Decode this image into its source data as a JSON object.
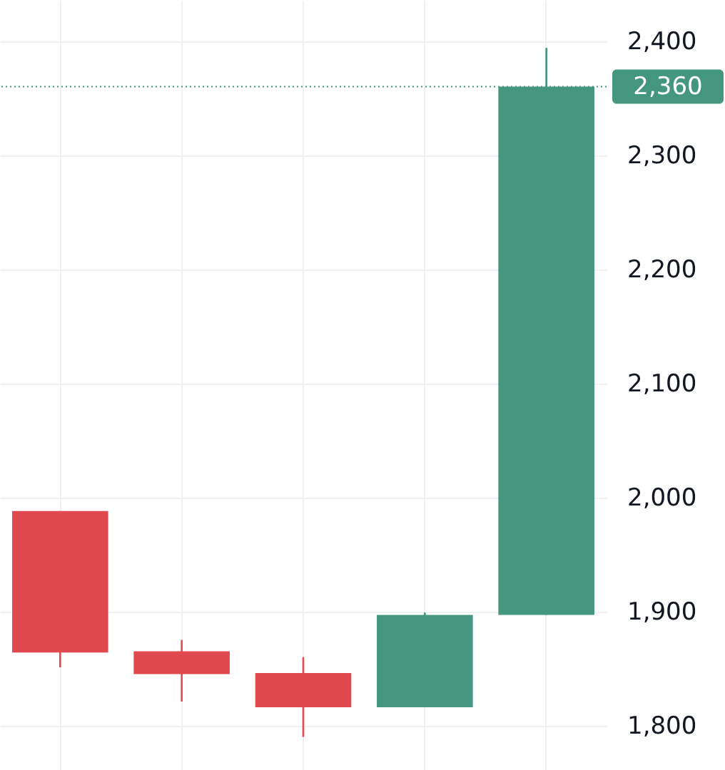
{
  "chart_data": {
    "type": "candlestick",
    "categories": [
      null,
      null,
      null,
      null,
      null
    ],
    "ohlc": [
      [
        1988,
        1988,
        1851,
        1864
      ],
      [
        1865,
        1875,
        1821,
        1845
      ],
      [
        1846,
        1860,
        1790,
        1816
      ],
      [
        1816,
        1899,
        1816,
        1897
      ],
      [
        1897,
        2394,
        1897,
        2360
      ]
    ],
    "colors": [
      "#e0494e",
      "#e0494e",
      "#e0494e",
      "#44967f",
      "#44967f"
    ],
    "ylim": [
      1761,
      2436
    ],
    "yticks": [
      {
        "value": 1800,
        "label": "1,800"
      },
      {
        "value": 1900,
        "label": "1,900"
      },
      {
        "value": 2000,
        "label": "2,000"
      },
      {
        "value": 2100,
        "label": "2,100"
      },
      {
        "value": 2200,
        "label": "2,200"
      },
      {
        "value": 2300,
        "label": "2,300"
      },
      {
        "value": 2400,
        "label": "2,400"
      }
    ],
    "grid": true,
    "tick_labels": "y",
    "ref_lines": [
      {
        "axis": "y",
        "value": 2360,
        "label": "2,360",
        "color": "#44967f",
        "line_style": "dotted"
      }
    ]
  }
}
